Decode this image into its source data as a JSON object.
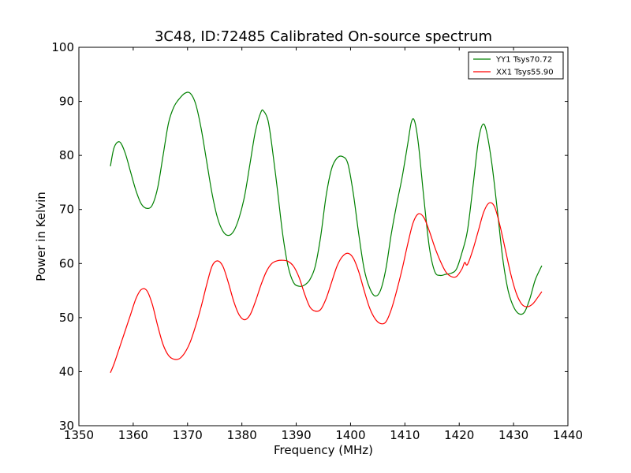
{
  "chart_data": {
    "type": "line",
    "title": "3C48, ID:72485 Calibrated On-source spectrum",
    "xlabel": "Frequency (MHz)",
    "ylabel": "Power in Kelvin",
    "xlim": [
      1350,
      1440
    ],
    "ylim": [
      30,
      100
    ],
    "xticks": [
      1350,
      1360,
      1370,
      1380,
      1390,
      1400,
      1410,
      1420,
      1430,
      1440
    ],
    "yticks": [
      30,
      40,
      50,
      60,
      70,
      80,
      90,
      100
    ],
    "grid": false,
    "legend_position": "top-right",
    "series": [
      {
        "name": "YY1 Tsys70.72",
        "color": "#008000",
        "points": [
          [
            1355.8,
            78.0
          ],
          [
            1356.5,
            81.5
          ],
          [
            1357.5,
            82.5
          ],
          [
            1358.5,
            80.5
          ],
          [
            1359.5,
            77.0
          ],
          [
            1360.5,
            73.5
          ],
          [
            1361.5,
            71.0
          ],
          [
            1362.5,
            70.2
          ],
          [
            1363.5,
            70.8
          ],
          [
            1364.5,
            74.0
          ],
          [
            1365.5,
            80.0
          ],
          [
            1366.5,
            86.0
          ],
          [
            1367.5,
            89.0
          ],
          [
            1368.5,
            90.5
          ],
          [
            1369.5,
            91.5
          ],
          [
            1370.5,
            91.5
          ],
          [
            1371.5,
            89.5
          ],
          [
            1372.5,
            85.0
          ],
          [
            1373.5,
            79.0
          ],
          [
            1374.5,
            73.0
          ],
          [
            1375.5,
            68.5
          ],
          [
            1376.5,
            66.0
          ],
          [
            1377.5,
            65.2
          ],
          [
            1378.5,
            66.0
          ],
          [
            1379.5,
            68.5
          ],
          [
            1380.5,
            72.5
          ],
          [
            1381.5,
            78.5
          ],
          [
            1382.5,
            84.5
          ],
          [
            1383.5,
            88.0
          ],
          [
            1384.0,
            88.2
          ],
          [
            1384.8,
            86.5
          ],
          [
            1385.5,
            82.0
          ],
          [
            1386.5,
            74.0
          ],
          [
            1387.5,
            65.5
          ],
          [
            1388.5,
            59.5
          ],
          [
            1389.5,
            56.5
          ],
          [
            1390.5,
            55.8
          ],
          [
            1391.5,
            56.0
          ],
          [
            1392.5,
            57.0
          ],
          [
            1393.5,
            59.5
          ],
          [
            1394.5,
            65.0
          ],
          [
            1395.5,
            72.5
          ],
          [
            1396.5,
            77.5
          ],
          [
            1397.5,
            79.5
          ],
          [
            1398.5,
            79.8
          ],
          [
            1399.5,
            78.5
          ],
          [
            1400.5,
            73.0
          ],
          [
            1401.5,
            65.5
          ],
          [
            1402.5,
            59.0
          ],
          [
            1403.5,
            55.5
          ],
          [
            1404.5,
            54.0
          ],
          [
            1405.5,
            55.0
          ],
          [
            1406.5,
            59.0
          ],
          [
            1407.5,
            65.5
          ],
          [
            1408.5,
            71.0
          ],
          [
            1409.5,
            76.0
          ],
          [
            1410.5,
            82.0
          ],
          [
            1411.2,
            86.2
          ],
          [
            1411.8,
            86.3
          ],
          [
            1412.5,
            82.0
          ],
          [
            1413.5,
            72.0
          ],
          [
            1414.5,
            63.0
          ],
          [
            1415.5,
            58.5
          ],
          [
            1416.5,
            57.8
          ],
          [
            1417.5,
            58.0
          ],
          [
            1418.5,
            58.2
          ],
          [
            1419.5,
            59.0
          ],
          [
            1420.5,
            62.0
          ],
          [
            1421.5,
            66.0
          ],
          [
            1422.5,
            74.0
          ],
          [
            1423.5,
            82.5
          ],
          [
            1424.3,
            85.7
          ],
          [
            1425.0,
            84.5
          ],
          [
            1426.0,
            78.5
          ],
          [
            1427.0,
            70.0
          ],
          [
            1428.0,
            61.0
          ],
          [
            1429.0,
            55.0
          ],
          [
            1430.0,
            52.0
          ],
          [
            1431.0,
            50.7
          ],
          [
            1432.0,
            51.0
          ],
          [
            1433.0,
            53.5
          ],
          [
            1434.0,
            57.0
          ],
          [
            1435.2,
            59.6
          ]
        ]
      },
      {
        "name": "XX1 Tsys55.90",
        "color": "#ff0000",
        "points": [
          [
            1355.8,
            39.8
          ],
          [
            1356.5,
            41.5
          ],
          [
            1357.5,
            44.5
          ],
          [
            1358.5,
            47.5
          ],
          [
            1359.5,
            50.5
          ],
          [
            1360.5,
            53.5
          ],
          [
            1361.5,
            55.2
          ],
          [
            1362.5,
            55.0
          ],
          [
            1363.5,
            52.5
          ],
          [
            1364.5,
            48.5
          ],
          [
            1365.5,
            45.0
          ],
          [
            1366.5,
            43.0
          ],
          [
            1367.5,
            42.3
          ],
          [
            1368.5,
            42.4
          ],
          [
            1369.5,
            43.5
          ],
          [
            1370.5,
            45.5
          ],
          [
            1371.5,
            48.5
          ],
          [
            1372.5,
            52.0
          ],
          [
            1373.5,
            56.0
          ],
          [
            1374.5,
            59.5
          ],
          [
            1375.5,
            60.5
          ],
          [
            1376.5,
            59.5
          ],
          [
            1377.5,
            56.5
          ],
          [
            1378.5,
            53.0
          ],
          [
            1379.5,
            50.5
          ],
          [
            1380.5,
            49.6
          ],
          [
            1381.5,
            50.5
          ],
          [
            1382.5,
            53.0
          ],
          [
            1383.5,
            56.0
          ],
          [
            1384.5,
            58.5
          ],
          [
            1385.5,
            60.0
          ],
          [
            1386.5,
            60.5
          ],
          [
            1387.5,
            60.6
          ],
          [
            1388.5,
            60.4
          ],
          [
            1389.5,
            59.5
          ],
          [
            1390.5,
            57.5
          ],
          [
            1391.5,
            54.5
          ],
          [
            1392.5,
            52.0
          ],
          [
            1393.5,
            51.2
          ],
          [
            1394.5,
            51.5
          ],
          [
            1395.5,
            53.5
          ],
          [
            1396.5,
            56.5
          ],
          [
            1397.5,
            59.5
          ],
          [
            1398.5,
            61.3
          ],
          [
            1399.5,
            61.9
          ],
          [
            1400.5,
            61.0
          ],
          [
            1401.5,
            58.5
          ],
          [
            1402.5,
            55.0
          ],
          [
            1403.5,
            51.8
          ],
          [
            1404.5,
            49.8
          ],
          [
            1405.5,
            48.9
          ],
          [
            1406.5,
            49.2
          ],
          [
            1407.5,
            51.5
          ],
          [
            1408.5,
            55.0
          ],
          [
            1409.5,
            59.0
          ],
          [
            1410.5,
            63.5
          ],
          [
            1411.5,
            67.5
          ],
          [
            1412.5,
            69.2
          ],
          [
            1413.5,
            68.5
          ],
          [
            1414.5,
            66.0
          ],
          [
            1415.5,
            63.0
          ],
          [
            1416.5,
            60.5
          ],
          [
            1417.5,
            58.5
          ],
          [
            1418.5,
            57.6
          ],
          [
            1419.5,
            57.6
          ],
          [
            1420.5,
            59.0
          ],
          [
            1421.0,
            60.2
          ],
          [
            1421.5,
            59.8
          ],
          [
            1422.5,
            62.5
          ],
          [
            1423.5,
            66.0
          ],
          [
            1424.5,
            69.5
          ],
          [
            1425.5,
            71.2
          ],
          [
            1426.5,
            70.5
          ],
          [
            1427.5,
            67.0
          ],
          [
            1428.5,
            62.5
          ],
          [
            1429.5,
            58.0
          ],
          [
            1430.5,
            54.5
          ],
          [
            1431.5,
            52.5
          ],
          [
            1432.5,
            52.0
          ],
          [
            1433.5,
            52.5
          ],
          [
            1434.5,
            53.8
          ],
          [
            1435.2,
            54.8
          ]
        ]
      }
    ]
  }
}
